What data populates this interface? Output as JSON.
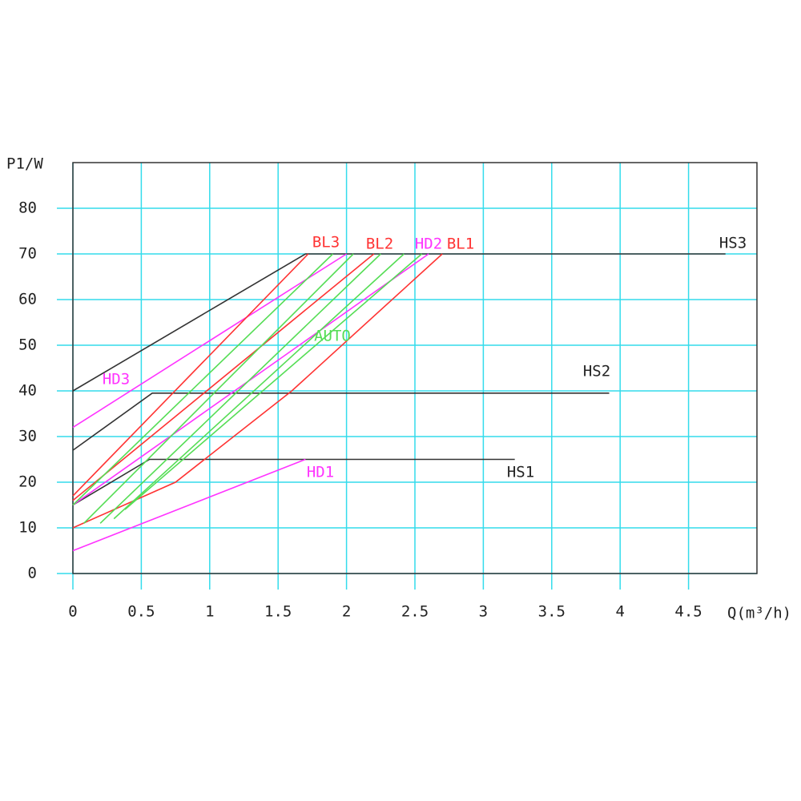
{
  "chart_data": {
    "type": "line",
    "ylabel": "P1/W",
    "xlabel": "Q(m³/h)",
    "xlim": [
      0,
      5
    ],
    "ylim": [
      0,
      90
    ],
    "xticks": [
      0,
      0.5,
      1,
      1.5,
      2,
      2.5,
      3,
      3.5,
      4,
      4.5
    ],
    "yticks": [
      0,
      10,
      20,
      30,
      40,
      50,
      60,
      70,
      80
    ],
    "grid": true,
    "grid_color": "#33dcec",
    "series": [
      {
        "name": "HS3",
        "color": "#333333",
        "x": [
          0,
          1.7,
          4.77
        ],
        "values": [
          40,
          70,
          70
        ]
      },
      {
        "name": "HS2",
        "color": "#333333",
        "x": [
          0,
          0.58,
          3.92
        ],
        "values": [
          27,
          39.5,
          39.5
        ]
      },
      {
        "name": "HS1",
        "color": "#333333",
        "x": [
          0,
          0.56,
          3.23
        ],
        "values": [
          15,
          25,
          25
        ]
      },
      {
        "name": "HD3",
        "color": "#ff33ff",
        "x": [
          0,
          2
        ],
        "values": [
          32,
          70
        ]
      },
      {
        "name": "HD2",
        "color": "#ff33ff",
        "x": [
          0,
          2.6
        ],
        "values": [
          15,
          70
        ]
      },
      {
        "name": "HD1",
        "color": "#ff33ff",
        "x": [
          0,
          1.7
        ],
        "values": [
          5,
          25
        ]
      },
      {
        "name": "BL3",
        "color": "#ff3333",
        "x": [
          0,
          1.72
        ],
        "values": [
          17,
          70
        ]
      },
      {
        "name": "BL2",
        "color": "#ff3333",
        "x": [
          0,
          2.2
        ],
        "values": [
          16,
          70
        ]
      },
      {
        "name": "BL1",
        "color": "#ff3333",
        "x": [
          0,
          0.75,
          1.6,
          2.7
        ],
        "values": [
          10,
          20,
          40,
          70
        ]
      },
      {
        "name": "AUTO",
        "color": "#55dd55",
        "x": [
          0,
          1.9,
          null,
          0.08,
          2.05,
          null,
          0.2,
          2.25,
          null,
          0.3,
          2.42,
          null,
          0.38,
          2.55
        ],
        "values": [
          15,
          70,
          null,
          11,
          70,
          null,
          11,
          70,
          null,
          12,
          70,
          null,
          14,
          70
        ]
      }
    ]
  }
}
